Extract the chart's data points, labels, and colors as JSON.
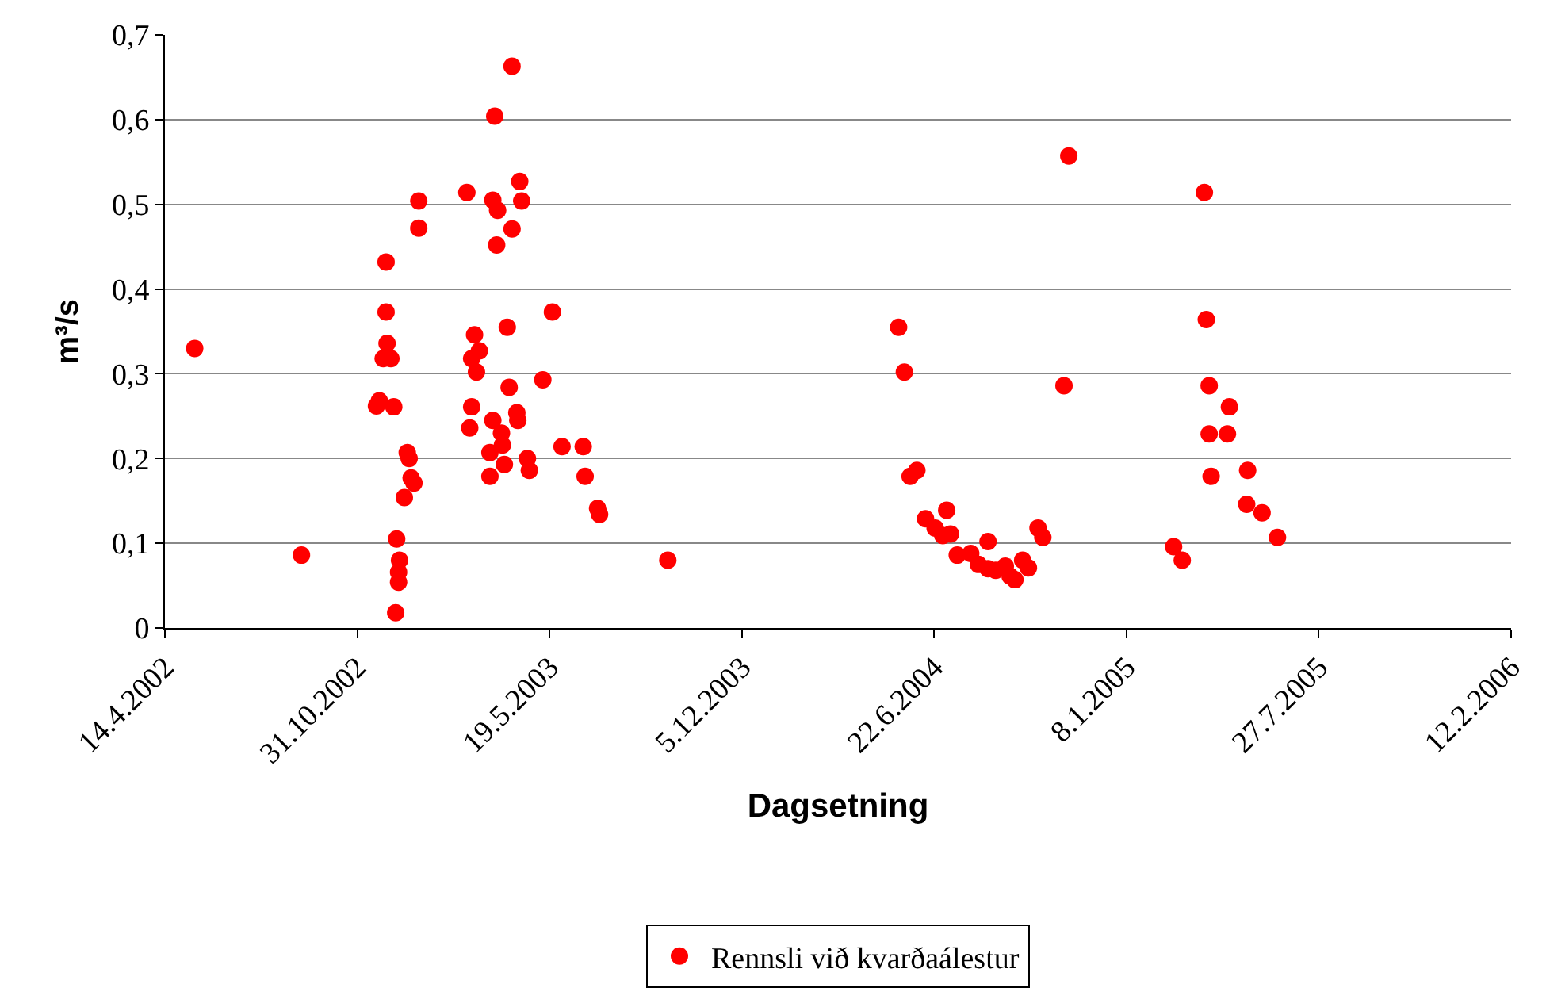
{
  "chart_data": {
    "type": "scatter",
    "xlabel": "Dagsetning",
    "ylabel": "m³/s",
    "x": [
      "2002-05-15",
      "2002-09-03",
      "2002-11-20",
      "2002-11-23",
      "2002-11-30",
      "2002-11-30",
      "2002-12-01",
      "2002-11-27",
      "2002-12-05",
      "2002-12-08",
      "2002-12-11",
      "2002-12-14",
      "2002-12-13",
      "2002-12-13",
      "2002-12-10",
      "2002-12-22",
      "2002-12-24",
      "2002-12-26",
      "2002-12-29",
      "2002-12-19",
      "2003-01-03",
      "2003-01-03",
      "2003-04-10",
      "2003-03-23",
      "2003-02-22",
      "2003-04-18",
      "2003-03-21",
      "2003-04-20",
      "2003-03-26",
      "2003-04-10",
      "2003-03-25",
      "2003-05-22",
      "2003-04-05",
      "2003-03-02",
      "2003-03-07",
      "2003-02-27",
      "2003-03-04",
      "2003-04-07",
      "2003-05-12",
      "2003-02-27",
      "2003-04-15",
      "2003-04-16",
      "2003-03-21",
      "2003-02-25",
      "2003-03-30",
      "2003-03-31",
      "2003-06-01",
      "2003-06-23",
      "2003-03-18",
      "2003-04-26",
      "2003-04-02",
      "2003-04-28",
      "2003-03-18",
      "2003-06-25",
      "2003-07-08",
      "2003-07-10",
      "2003-09-19",
      "2004-11-09",
      "2004-05-16",
      "2004-05-22",
      "2004-11-04",
      "2004-06-04",
      "2004-05-28",
      "2004-07-05",
      "2004-06-13",
      "2004-06-23",
      "2004-07-09",
      "2004-07-01",
      "2004-10-08",
      "2004-10-13",
      "2004-08-17",
      "2004-07-16",
      "2004-07-30",
      "2004-08-07",
      "2004-08-17",
      "2004-08-25",
      "2004-09-04",
      "2004-09-14",
      "2004-09-22",
      "2004-09-28",
      "2004-09-09",
      "2005-03-30",
      "2005-04-01",
      "2005-04-04",
      "2005-04-25",
      "2005-04-04",
      "2005-04-23",
      "2005-05-14",
      "2005-04-06",
      "2005-05-13",
      "2005-05-29",
      "2005-06-14",
      "2005-02-26",
      "2005-03-07"
    ],
    "series": [
      {
        "name": "Rennsli við kvarðaálestur",
        "color": "#ff0000",
        "values": [
          0.33,
          0.086,
          0.262,
          0.268,
          0.432,
          0.373,
          0.336,
          0.318,
          0.318,
          0.261,
          0.105,
          0.08,
          0.066,
          0.054,
          0.018,
          0.207,
          0.2,
          0.177,
          0.171,
          0.154,
          0.504,
          0.472,
          0.663,
          0.604,
          0.514,
          0.527,
          0.505,
          0.504,
          0.493,
          0.471,
          0.452,
          0.373,
          0.355,
          0.346,
          0.327,
          0.318,
          0.302,
          0.284,
          0.293,
          0.261,
          0.254,
          0.245,
          0.245,
          0.236,
          0.23,
          0.216,
          0.214,
          0.214,
          0.207,
          0.2,
          0.193,
          0.186,
          0.179,
          0.179,
          0.141,
          0.134,
          0.08,
          0.557,
          0.355,
          0.302,
          0.286,
          0.186,
          0.179,
          0.139,
          0.129,
          0.118,
          0.111,
          0.109,
          0.118,
          0.107,
          0.102,
          0.086,
          0.088,
          0.075,
          0.07,
          0.068,
          0.073,
          0.057,
          0.08,
          0.071,
          0.061,
          0.514,
          0.364,
          0.286,
          0.261,
          0.229,
          0.229,
          0.186,
          0.179,
          0.146,
          0.136,
          0.107,
          0.096,
          0.08
        ]
      }
    ],
    "xlim": [
      "2002-04-14",
      "2006-02-12"
    ],
    "xticks": [
      {
        "value": "2002-04-14",
        "label": "14.4.2002"
      },
      {
        "value": "2002-10-31",
        "label": "31.10.2002"
      },
      {
        "value": "2003-05-19",
        "label": "19.5.2003"
      },
      {
        "value": "2003-12-05",
        "label": "5.12.2003"
      },
      {
        "value": "2004-06-22",
        "label": "22.6.2004"
      },
      {
        "value": "2005-01-08",
        "label": "8.1.2005"
      },
      {
        "value": "2005-07-27",
        "label": "27.7.2005"
      },
      {
        "value": "2006-02-12",
        "label": "12.2.2006"
      }
    ],
    "ylim": [
      0,
      0.7
    ],
    "yticks": [
      0,
      {
        "value": 0.1,
        "label": "0,1"
      },
      {
        "value": 0.2,
        "label": "0,2"
      },
      {
        "value": 0.3,
        "label": "0,3"
      },
      {
        "value": 0.4,
        "label": "0,4"
      },
      {
        "value": 0.5,
        "label": "0,5"
      },
      {
        "value": 0.6,
        "label": "0,6"
      },
      {
        "value": 0.7,
        "label": "0,7"
      }
    ],
    "grid": "y",
    "legend": "bottom",
    "marker": "circle"
  }
}
